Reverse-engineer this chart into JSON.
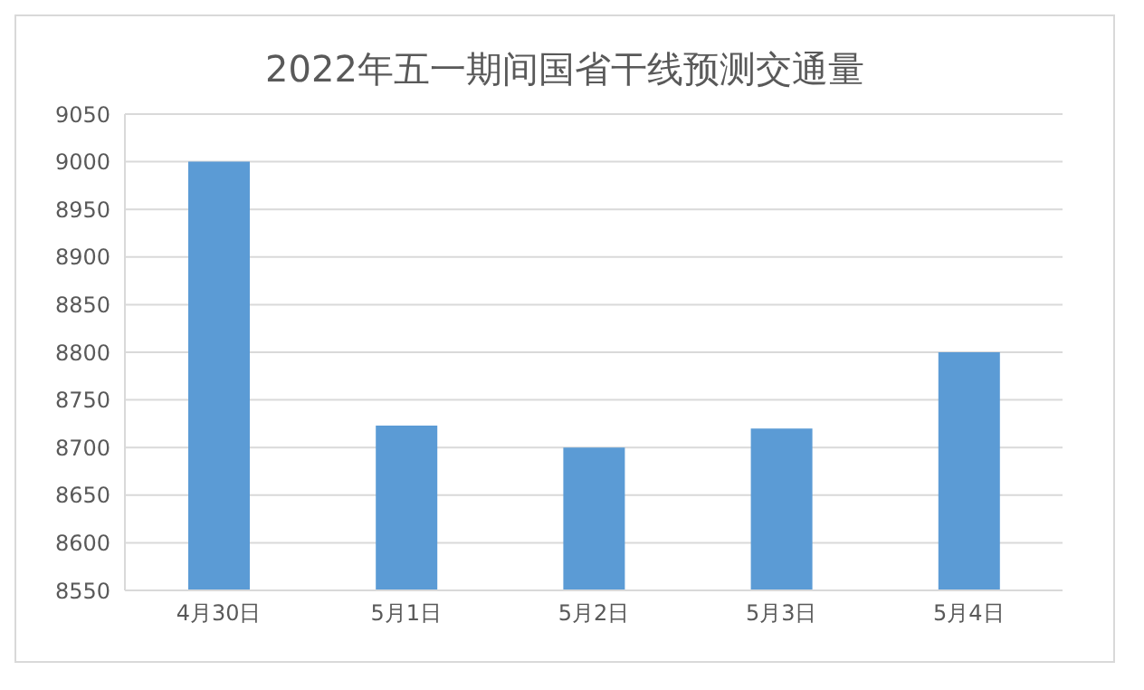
{
  "chart_data": {
    "type": "bar",
    "title": "2022年五一期间国省干线预测交通量",
    "categories": [
      "4月30日",
      "5月1日",
      "5月2日",
      "5月3日",
      "5月4日"
    ],
    "values": [
      9000,
      8723,
      8700,
      8720,
      8800
    ],
    "color": "#5b9bd5",
    "ylim": [
      8550,
      9050
    ],
    "yticks": [
      8550,
      8600,
      8650,
      8700,
      8750,
      8800,
      8850,
      8900,
      8950,
      9000,
      9050
    ],
    "grid": "y"
  }
}
